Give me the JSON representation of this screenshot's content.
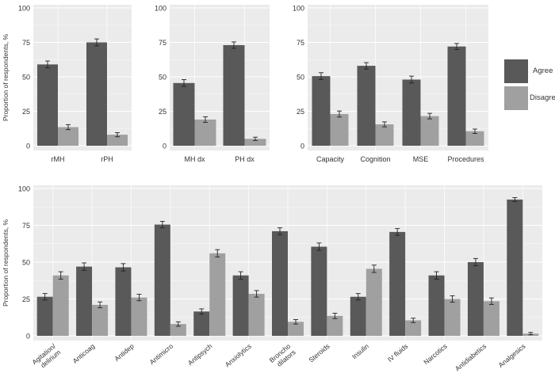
{
  "colors": {
    "agree": "#595959",
    "disagree": "#a0a0a0",
    "panel_bg": "#ebebeb",
    "grid": "#ffffff"
  },
  "legend": {
    "agree_label": "Agree",
    "disagree_label": "Disagree"
  },
  "chart_data": [
    {
      "type": "bar",
      "panel": "top-1",
      "ylabel": "Proportion of respondents, %",
      "ylim": [
        0,
        100
      ],
      "yticks": [
        0,
        25,
        50,
        75,
        100
      ],
      "categories": [
        "rMH",
        "rPH"
      ],
      "series": [
        {
          "name": "Agree",
          "values": [
            59,
            75
          ],
          "errors": [
            2.5,
            2.5
          ]
        },
        {
          "name": "Disagree",
          "values": [
            13.5,
            8
          ],
          "errors": [
            1.8,
            1.5
          ]
        }
      ]
    },
    {
      "type": "bar",
      "panel": "top-2",
      "ylabel": "",
      "ylim": [
        0,
        100
      ],
      "yticks": [
        0,
        25,
        50,
        75,
        100
      ],
      "categories": [
        "MH dx",
        "PH dx"
      ],
      "series": [
        {
          "name": "Agree",
          "values": [
            45.5,
            73
          ],
          "errors": [
            2.5,
            2.3
          ]
        },
        {
          "name": "Disagree",
          "values": [
            19,
            5
          ],
          "errors": [
            2,
            1.2
          ]
        }
      ]
    },
    {
      "type": "bar",
      "panel": "top-3",
      "ylabel": "",
      "ylim": [
        0,
        100
      ],
      "yticks": [
        0,
        25,
        50,
        75,
        100
      ],
      "categories": [
        "Capacity",
        "Cognition",
        "MSE",
        "Procedures"
      ],
      "series": [
        {
          "name": "Agree",
          "values": [
            50.5,
            58,
            48,
            72
          ],
          "errors": [
            2.5,
            2.3,
            2.5,
            2.2
          ]
        },
        {
          "name": "Disagree",
          "values": [
            23,
            15.5,
            21.5,
            10.5
          ],
          "errors": [
            2.2,
            1.8,
            2,
            1.6
          ]
        }
      ]
    },
    {
      "type": "bar",
      "panel": "bottom",
      "ylabel": "Proportion of respondents, %",
      "ylim": [
        0,
        100
      ],
      "yticks": [
        0,
        25,
        50,
        75,
        100
      ],
      "categories": [
        "Agitation/\ndelirium",
        "Anticoag",
        "Antidep",
        "Antimicro",
        "Antipsych",
        "Anxiolytics",
        "Broncho\ndilators",
        "Steroids",
        "Insulin",
        "IV fluids",
        "Narcotics",
        "Antidiabetics",
        "Analgesics"
      ],
      "series": [
        {
          "name": "Agree",
          "values": [
            26.5,
            47,
            46.5,
            75.5,
            16.5,
            41,
            71,
            60.5,
            26.5,
            70.5,
            41,
            50,
            92.5
          ],
          "errors": [
            2.2,
            2.5,
            2.5,
            2.2,
            1.8,
            2.5,
            2.3,
            2.5,
            2.2,
            2.3,
            2.5,
            2.5,
            1.3
          ]
        },
        {
          "name": "Disagree",
          "values": [
            41,
            21,
            26,
            8,
            56,
            28.5,
            9.5,
            13.5,
            45.5,
            10.5,
            25,
            23.5,
            1.5
          ],
          "errors": [
            2.5,
            2,
            2.2,
            1.5,
            2.5,
            2.2,
            1.5,
            1.8,
            2.5,
            1.5,
            2.2,
            2.2,
            0.8
          ]
        }
      ]
    }
  ]
}
